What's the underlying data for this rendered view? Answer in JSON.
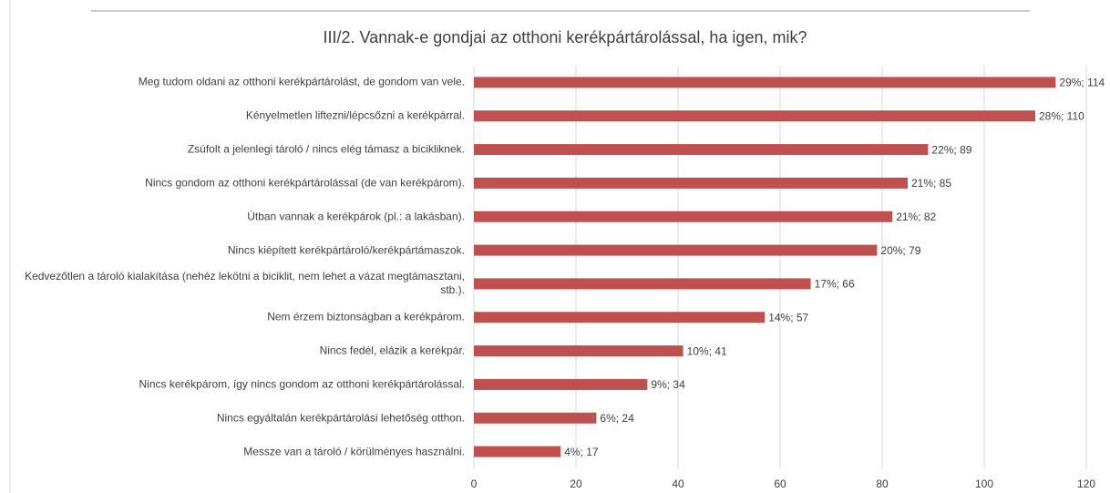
{
  "chart_data": {
    "type": "barh",
    "title": "III/2. Vannak-e gondjai az otthoni kerékpártárolással, ha igen, mik?",
    "categories": [
      "Meg tudom oldani az otthoni kerékpártárolást, de gondom van vele.",
      "Kényelmetlen liftezni/lépcsőzni a kerékpárral.",
      "Zsúfolt a jelenlegi tároló / nincs elég támasz a bicikliknek.",
      "Nincs gondom az otthoni kerékpártárolással (de van kerékpárom).",
      "Útban vannak a kerékpárok (pl.: a lakásban).",
      "Nincs kiépített kerékpártároló/kerékpártámaszok.",
      "Kedvezőtlen a tároló kialakítása (nehéz lekötni a biciklit, nem lehet a vázat megtámasztani, stb.).",
      "Nem érzem biztonságban a kerékpárom.",
      "Nincs fedél, elázik a kerékpár.",
      "Nincs kerékpárom, így nincs gondom az otthoni kerékpártárolással.",
      "Nincs egyáltalán kerékpártárolási lehetőség otthon.",
      "Messze van a tároló / körülményes használni."
    ],
    "values": [
      114,
      110,
      89,
      85,
      82,
      79,
      66,
      57,
      41,
      34,
      24,
      17
    ],
    "value_labels": [
      "29%; 114",
      "28%; 110",
      "22%; 89",
      "21%; 85",
      "21%; 82",
      "20%; 79",
      "17%; 66",
      "14%; 57",
      "10%; 41",
      "9%; 34",
      "6%; 24",
      "4%; 17"
    ],
    "color": "#c0504d",
    "xlim": [
      0,
      120
    ],
    "xticks": [
      0,
      20,
      40,
      60,
      80,
      100,
      120
    ],
    "grid": true
  }
}
